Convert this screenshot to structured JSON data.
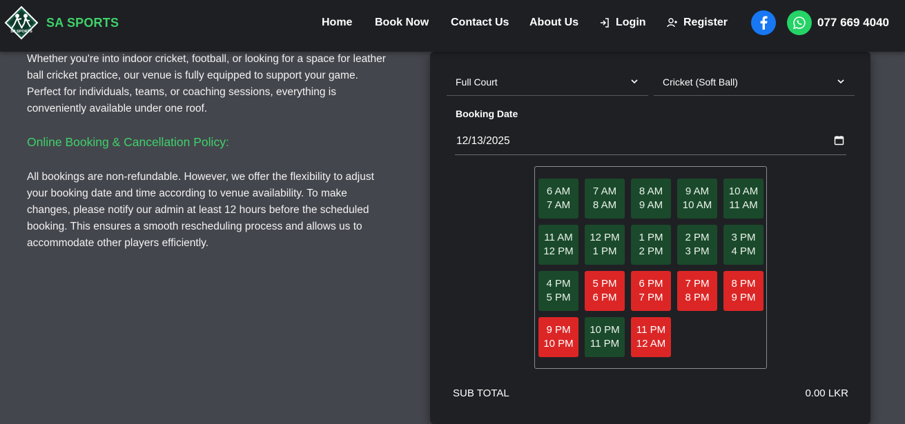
{
  "brand": {
    "name": "SA SPORTS",
    "logo_text": "SA SPORTS"
  },
  "nav": {
    "home": "Home",
    "book_now": "Book Now",
    "contact_us": "Contact Us",
    "about_us": "About Us",
    "login": "Login",
    "register": "Register"
  },
  "contact": {
    "phone": "077 669 4040"
  },
  "content": {
    "intro": "Whether you're into indoor cricket, football, or looking for a space for leather ball cricket practice, our venue is fully equipped to support your game. Perfect for individuals, teams, or coaching sessions, everything is conveniently available under one roof.",
    "policy_heading": "Online Booking & Cancellation Policy:",
    "policy_text": "All bookings are non-refundable. However, we offer the flexibility to adjust your booking date and time according to venue availability. To make changes, please notify our admin at least 12 hours before the scheduled booking. This ensures a smooth rescheduling process and allows us to accommodate other players efficiently."
  },
  "booking": {
    "court_select": "Full Court",
    "sport_select": "Cricket (Soft Ball)",
    "date_label": "Booking Date",
    "date_value": "12/13/2025",
    "slots": [
      {
        "start": "6 AM",
        "end": "7 AM",
        "status": "available"
      },
      {
        "start": "7 AM",
        "end": "8 AM",
        "status": "available"
      },
      {
        "start": "8 AM",
        "end": "9 AM",
        "status": "available"
      },
      {
        "start": "9 AM",
        "end": "10 AM",
        "status": "available"
      },
      {
        "start": "10 AM",
        "end": "11 AM",
        "status": "available"
      },
      {
        "start": "11 AM",
        "end": "12 PM",
        "status": "available"
      },
      {
        "start": "12 PM",
        "end": "1 PM",
        "status": "available"
      },
      {
        "start": "1 PM",
        "end": "2 PM",
        "status": "available"
      },
      {
        "start": "2 PM",
        "end": "3 PM",
        "status": "available"
      },
      {
        "start": "3 PM",
        "end": "4 PM",
        "status": "available"
      },
      {
        "start": "4 PM",
        "end": "5 PM",
        "status": "available"
      },
      {
        "start": "5 PM",
        "end": "6 PM",
        "status": "booked"
      },
      {
        "start": "6 PM",
        "end": "7 PM",
        "status": "booked"
      },
      {
        "start": "7 PM",
        "end": "8 PM",
        "status": "booked"
      },
      {
        "start": "8 PM",
        "end": "9 PM",
        "status": "booked"
      },
      {
        "start": "9 PM",
        "end": "10 PM",
        "status": "booked"
      },
      {
        "start": "10 PM",
        "end": "11 PM",
        "status": "available"
      },
      {
        "start": "11 PM",
        "end": "12 AM",
        "status": "booked"
      }
    ],
    "subtotal_label": "SUB TOTAL",
    "subtotal_value": "0.00 LKR"
  },
  "icons": {
    "login": "login-icon",
    "register": "user-plus-icon",
    "facebook": "facebook-icon",
    "whatsapp": "whatsapp-icon",
    "calendar": "calendar-icon",
    "dropdown": "chevron-down-icon"
  },
  "colors": {
    "brand_green": "#3fd16a",
    "available_slot": "#1a4a2b",
    "booked_slot": "#dc2626",
    "facebook": "#1877f2",
    "whatsapp": "#25d366"
  }
}
